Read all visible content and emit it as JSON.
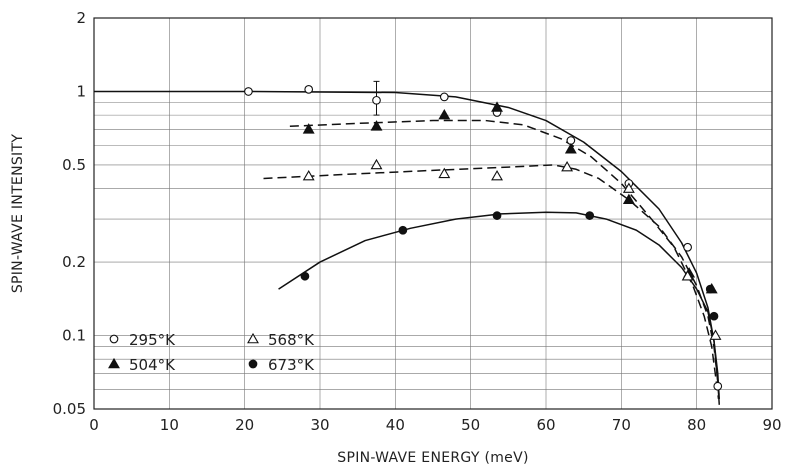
{
  "chart_data": {
    "type": "scatter",
    "title": "",
    "xlabel": "SPIN-WAVE ENERGY (meV)",
    "ylabel": "SPIN-WAVE INTENSITY",
    "x_scale": "linear",
    "y_scale": "log",
    "xlim": [
      0,
      90
    ],
    "ylim": [
      0.05,
      2
    ],
    "x_ticks": [
      "0",
      "10",
      "20",
      "30",
      "40",
      "50",
      "60",
      "70",
      "80",
      "90"
    ],
    "y_ticks": [
      {
        "value": 2,
        "label": "2"
      },
      {
        "value": 1,
        "label": "1"
      },
      {
        "value": 0.5,
        "label": "0.5"
      },
      {
        "value": 0.2,
        "label": "0.2"
      },
      {
        "value": 0.1,
        "label": "0.1"
      },
      {
        "value": 0.05,
        "label": "0.05"
      }
    ],
    "grid": true,
    "legend_position": "bottom-left",
    "series": [
      {
        "name": "295°K",
        "marker": "open-circle",
        "points": [
          [
            20.5,
            1.0
          ],
          [
            28.5,
            1.02
          ],
          [
            37.5,
            0.92
          ],
          [
            46.5,
            0.95
          ],
          [
            53.5,
            0.82
          ],
          [
            63.3,
            0.63
          ],
          [
            71.0,
            0.42
          ],
          [
            78.8,
            0.23
          ],
          [
            82.8,
            0.062
          ]
        ],
        "error_bars": [
          {
            "x": 37.5,
            "low": 0.8,
            "high": 1.1
          }
        ],
        "fit_line": {
          "style": "solid",
          "points": [
            [
              0,
              1.0
            ],
            [
              20,
              1.0
            ],
            [
              40,
              0.99
            ],
            [
              48,
              0.95
            ],
            [
              55,
              0.86
            ],
            [
              60,
              0.76
            ],
            [
              65,
              0.62
            ],
            [
              70,
              0.47
            ],
            [
              75,
              0.33
            ],
            [
              78,
              0.24
            ],
            [
              80,
              0.18
            ],
            [
              81.5,
              0.13
            ],
            [
              82.3,
              0.095
            ],
            [
              82.8,
              0.065
            ],
            [
              83.0,
              0.052
            ]
          ]
        }
      },
      {
        "name": "504°K",
        "marker": "filled-triangle",
        "points": [
          [
            28.5,
            0.7
          ],
          [
            37.5,
            0.72
          ],
          [
            46.5,
            0.8
          ],
          [
            53.5,
            0.86
          ],
          [
            63.3,
            0.58
          ],
          [
            71.0,
            0.36
          ],
          [
            79.0,
            0.18
          ],
          [
            82.0,
            0.155
          ]
        ],
        "fit_line": {
          "style": "dashed",
          "points": [
            [
              26,
              0.72
            ],
            [
              35,
              0.74
            ],
            [
              45,
              0.76
            ],
            [
              52,
              0.76
            ],
            [
              57,
              0.73
            ],
            [
              62,
              0.64
            ],
            [
              66,
              0.54
            ],
            [
              70,
              0.42
            ],
            [
              74,
              0.3
            ],
            [
              77,
              0.23
            ],
            [
              79.5,
              0.16
            ],
            [
              81,
              0.12
            ],
            [
              82,
              0.09
            ],
            [
              82.6,
              0.065
            ],
            [
              82.9,
              0.055
            ]
          ]
        }
      },
      {
        "name": "568°K",
        "marker": "open-triangle",
        "points": [
          [
            28.5,
            0.45
          ],
          [
            37.5,
            0.5
          ],
          [
            46.5,
            0.46
          ],
          [
            53.5,
            0.45
          ],
          [
            62.8,
            0.49
          ],
          [
            71.0,
            0.4
          ],
          [
            78.8,
            0.175
          ],
          [
            82.5,
            0.1
          ]
        ],
        "fit_line": {
          "style": "dashed",
          "points": [
            [
              22.5,
              0.44
            ],
            [
              35,
              0.46
            ],
            [
              45,
              0.475
            ],
            [
              55,
              0.49
            ],
            [
              61,
              0.5
            ],
            [
              64,
              0.48
            ],
            [
              67,
              0.44
            ],
            [
              71,
              0.36
            ],
            [
              75,
              0.28
            ],
            [
              78,
              0.21
            ],
            [
              80,
              0.16
            ],
            [
              81.5,
              0.12
            ],
            [
              82.3,
              0.09
            ],
            [
              82.8,
              0.065
            ],
            [
              83,
              0.055
            ]
          ]
        }
      },
      {
        "name": "673°K",
        "marker": "filled-circle",
        "points": [
          [
            28.0,
            0.175
          ],
          [
            41.0,
            0.27
          ],
          [
            53.5,
            0.31
          ],
          [
            65.8,
            0.31
          ],
          [
            81.8,
            0.155
          ],
          [
            82.3,
            0.12
          ]
        ],
        "fit_line": {
          "style": "solid",
          "points": [
            [
              24.5,
              0.155
            ],
            [
              30,
              0.2
            ],
            [
              36,
              0.245
            ],
            [
              42,
              0.275
            ],
            [
              48,
              0.3
            ],
            [
              54,
              0.315
            ],
            [
              60,
              0.32
            ],
            [
              64,
              0.318
            ],
            [
              68,
              0.3
            ],
            [
              72,
              0.27
            ],
            [
              75,
              0.235
            ],
            [
              78,
              0.19
            ],
            [
              80,
              0.155
            ],
            [
              81.5,
              0.125
            ],
            [
              82.3,
              0.095
            ],
            [
              82.8,
              0.07
            ],
            [
              83,
              0.055
            ]
          ]
        }
      }
    ]
  }
}
